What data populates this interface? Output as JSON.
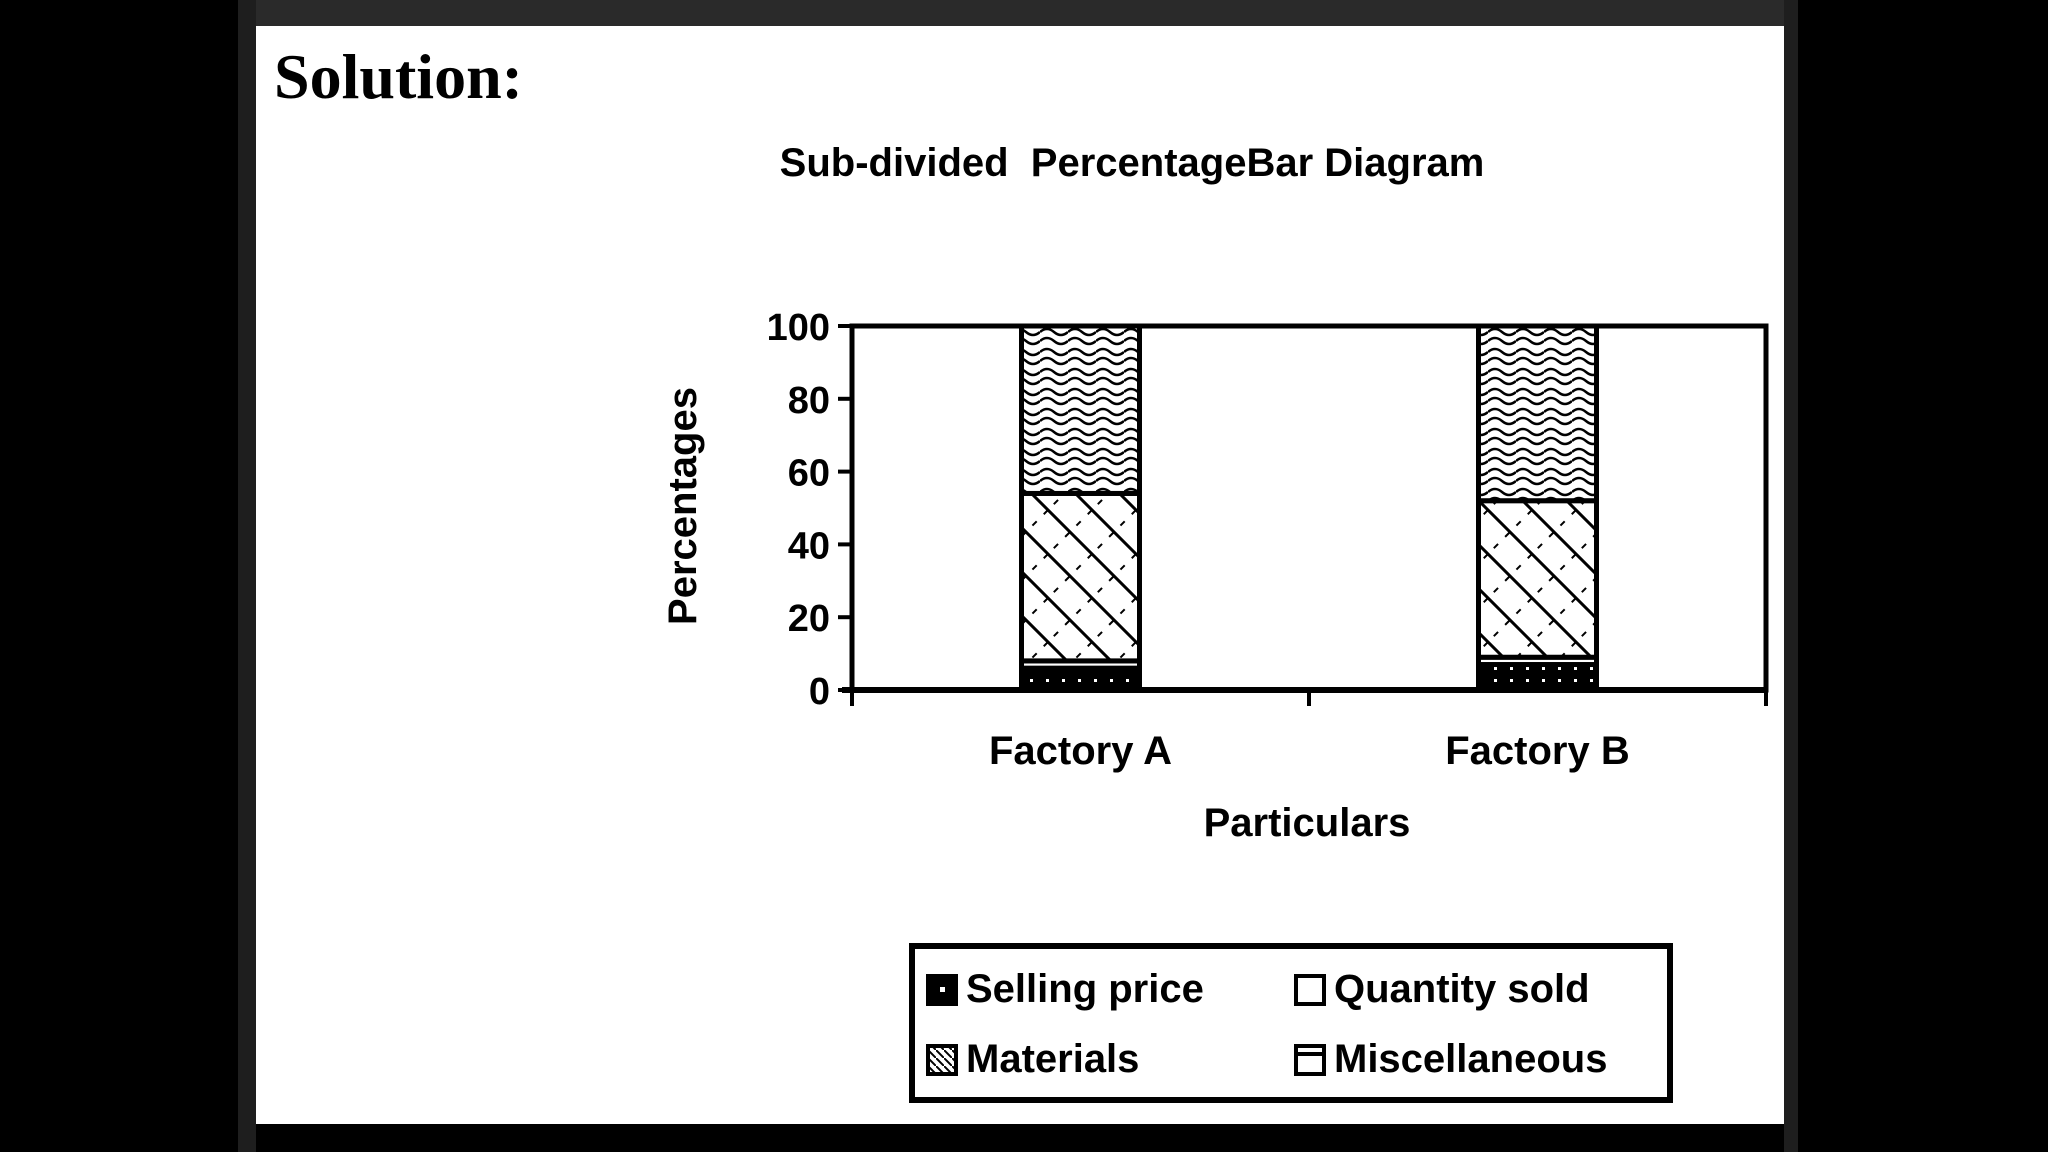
{
  "slide": {
    "heading": "Solution:"
  },
  "chart_data": {
    "type": "bar",
    "stacked": true,
    "title": "Sub-divided  PercentageBar Diagram",
    "xlabel": "Particulars",
    "ylabel": "Percentages",
    "ylim": [
      0,
      100
    ],
    "yticks": [
      "0",
      "20",
      "40",
      "60",
      "80",
      "100"
    ],
    "categories": [
      "Factory A",
      "Factory B"
    ],
    "series": [
      {
        "name": "Selling price",
        "values": [
          6,
          7
        ]
      },
      {
        "name": "Quantity sold",
        "values": [
          2,
          2
        ]
      },
      {
        "name": "Materials",
        "values": [
          46,
          43
        ]
      },
      {
        "name": "Miscellaneous",
        "values": [
          46,
          48
        ]
      }
    ],
    "legend_position": "bottom",
    "grid": false
  }
}
